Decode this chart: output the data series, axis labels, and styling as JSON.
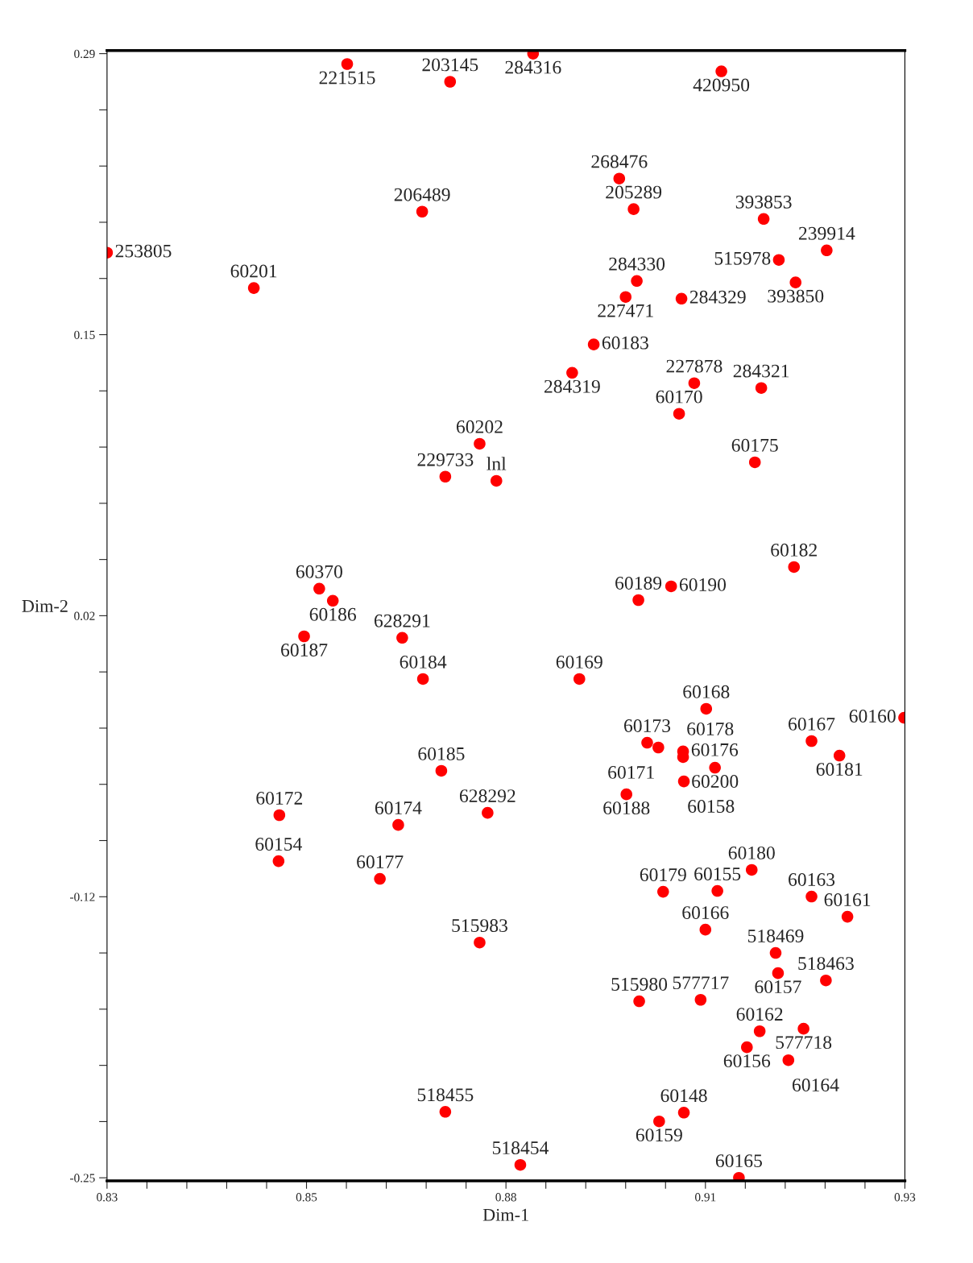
{
  "chart_data": {
    "type": "scatter",
    "xlabel": "Dim-1",
    "ylabel": "Dim-2",
    "marker": "circle",
    "grid": false,
    "legend": false,
    "xlim": [
      0.83,
      0.93
    ],
    "ylim": [
      -0.2515,
      0.2915
    ],
    "xticks": [
      0.83,
      {
        "value": 0.835,
        "label": null
      },
      {
        "value": 0.84,
        "label": null
      },
      {
        "value": 0.845,
        "label": null
      },
      {
        "value": 0.85,
        "label": null
      },
      {
        "value": 0.855,
        "label": "0.85"
      },
      {
        "value": 0.86,
        "label": null
      },
      {
        "value": 0.865,
        "label": null
      },
      {
        "value": 0.87,
        "label": null
      },
      {
        "value": 0.875,
        "label": null
      },
      0.88,
      {
        "value": 0.885,
        "label": null
      },
      {
        "value": 0.89,
        "label": null
      },
      {
        "value": 0.895,
        "label": null
      },
      {
        "value": 0.9,
        "label": null
      },
      {
        "value": 0.905,
        "label": "0.91"
      },
      {
        "value": 0.91,
        "label": null
      },
      {
        "value": 0.915,
        "label": null
      },
      {
        "value": 0.92,
        "label": null
      },
      {
        "value": 0.925,
        "label": null
      },
      0.93
    ],
    "yticks": [
      -0.25,
      {
        "value": -0.223,
        "label": null
      },
      {
        "value": -0.196,
        "label": null
      },
      {
        "value": -0.169,
        "label": null
      },
      {
        "value": -0.142,
        "label": null
      },
      {
        "value": -0.115,
        "label": "-0.12"
      },
      {
        "value": -0.088,
        "label": null
      },
      {
        "value": -0.061,
        "label": null
      },
      {
        "value": -0.034,
        "label": null
      },
      {
        "value": -0.007,
        "label": null
      },
      0.02,
      {
        "value": 0.047,
        "label": null
      },
      {
        "value": 0.074,
        "label": null
      },
      {
        "value": 0.101,
        "label": null
      },
      {
        "value": 0.128,
        "label": null
      },
      {
        "value": 0.155,
        "label": "0.15"
      },
      {
        "value": 0.182,
        "label": null
      },
      {
        "value": 0.209,
        "label": null
      },
      {
        "value": 0.236,
        "label": null
      },
      {
        "value": 0.263,
        "label": null
      },
      0.29
    ],
    "series": [
      {
        "color": "#ff0000",
        "x": [
          0.8601,
          0.873,
          0.8834,
          0.907,
          0.8942,
          0.896,
          0.8695,
          0.9123,
          0.83,
          0.9202,
          0.9142,
          0.9163,
          0.8484,
          0.8964,
          0.895,
          0.902,
          0.891,
          0.8883,
          0.9036,
          0.912,
          0.9017,
          0.8767,
          0.8724,
          0.8788,
          0.9112,
          0.9161,
          0.8566,
          0.8583,
          0.8547,
          0.8966,
          0.9007,
          0.867,
          0.8696,
          0.8892,
          0.9051,
          0.9299,
          0.8977,
          0.8991,
          0.9022,
          0.9022,
          0.9062,
          0.9023,
          0.9183,
          0.9218,
          0.8951,
          0.8719,
          0.8516,
          0.8777,
          0.8665,
          0.8515,
          0.8642,
          0.9108,
          0.8997,
          0.9065,
          0.9183,
          0.9228,
          0.905,
          0.8767,
          0.9138,
          0.9141,
          0.9201,
          0.8967,
          0.9044,
          0.9118,
          0.9173,
          0.9102,
          0.9154,
          0.8724,
          0.8992,
          0.9023,
          0.8818,
          0.9092
        ],
        "values": [
          0.285,
          0.2765,
          0.29,
          0.2815,
          0.23,
          0.2153,
          0.2141,
          0.2106,
          0.1944,
          0.1955,
          0.1909,
          0.1801,
          0.1774,
          0.1808,
          0.1731,
          0.1723,
          0.1503,
          0.1367,
          0.1317,
          0.1294,
          0.117,
          0.1026,
          0.0868,
          0.0848,
          0.0937,
          0.0434,
          0.033,
          0.0272,
          0.0101,
          0.0275,
          0.0341,
          0.0094,
          -0.0104,
          -0.0104,
          -0.0247,
          -0.029,
          -0.041,
          -0.0433,
          -0.0452,
          -0.0479,
          -0.053,
          -0.0596,
          -0.0402,
          -0.0472,
          -0.0658,
          -0.0545,
          -0.0758,
          -0.0747,
          -0.0805,
          -0.0979,
          -0.1064,
          -0.1021,
          -0.1126,
          -0.1122,
          -0.1149,
          -0.1246,
          -0.1308,
          -0.137,
          -0.142,
          -0.1517,
          -0.1552,
          -0.1652,
          -0.1645,
          -0.1796,
          -0.1784,
          -0.1873,
          -0.1935,
          -0.2183,
          -0.2229,
          -0.2187,
          -0.2438,
          -0.25
        ]
      }
    ],
    "annotations": [
      {
        "text": "221515",
        "x": 0.8601,
        "y": 0.285
      },
      {
        "text": "203145",
        "x": 0.873,
        "y": 0.2765
      },
      {
        "text": "284316",
        "x": 0.8834,
        "y": 0.29
      },
      {
        "text": "420950",
        "x": 0.907,
        "y": 0.2815
      },
      {
        "text": "268476",
        "x": 0.8942,
        "y": 0.23
      },
      {
        "text": "205289",
        "x": 0.896,
        "y": 0.2153
      },
      {
        "text": "206489",
        "x": 0.8695,
        "y": 0.2141
      },
      {
        "text": "393853",
        "x": 0.9123,
        "y": 0.2106
      },
      {
        "text": "253805",
        "x": 0.83,
        "y": 0.1944
      },
      {
        "text": "239914",
        "x": 0.9202,
        "y": 0.1955
      },
      {
        "text": "515978",
        "x": 0.9142,
        "y": 0.1909
      },
      {
        "text": "393850",
        "x": 0.9163,
        "y": 0.1801
      },
      {
        "text": "60201",
        "x": 0.8484,
        "y": 0.1774
      },
      {
        "text": "284330",
        "x": 0.8964,
        "y": 0.1808
      },
      {
        "text": "227471",
        "x": 0.895,
        "y": 0.1731
      },
      {
        "text": "284329",
        "x": 0.902,
        "y": 0.1723
      },
      {
        "text": "60183",
        "x": 0.891,
        "y": 0.1503
      },
      {
        "text": "284319",
        "x": 0.8883,
        "y": 0.1367
      },
      {
        "text": "227878",
        "x": 0.9036,
        "y": 0.1317
      },
      {
        "text": "284321",
        "x": 0.912,
        "y": 0.1294
      },
      {
        "text": "60170",
        "x": 0.9017,
        "y": 0.117
      },
      {
        "text": "60202",
        "x": 0.8767,
        "y": 0.1026
      },
      {
        "text": "229733",
        "x": 0.8724,
        "y": 0.0868
      },
      {
        "text": "lnl",
        "x": 0.8788,
        "y": 0.0848
      },
      {
        "text": "60175",
        "x": 0.9112,
        "y": 0.0937
      },
      {
        "text": "60182",
        "x": 0.9161,
        "y": 0.0434
      },
      {
        "text": "60370",
        "x": 0.8566,
        "y": 0.033
      },
      {
        "text": "60186",
        "x": 0.8583,
        "y": 0.0272
      },
      {
        "text": "60187",
        "x": 0.8547,
        "y": 0.0101
      },
      {
        "text": "60189",
        "x": 0.8966,
        "y": 0.0275
      },
      {
        "text": "60190",
        "x": 0.9007,
        "y": 0.0341
      },
      {
        "text": "628291",
        "x": 0.867,
        "y": 0.0094
      },
      {
        "text": "60184",
        "x": 0.8696,
        "y": -0.0104
      },
      {
        "text": "60169",
        "x": 0.8892,
        "y": -0.0104
      },
      {
        "text": "60168",
        "x": 0.9051,
        "y": -0.0247
      },
      {
        "text": "60160",
        "x": 0.9299,
        "y": -0.029
      },
      {
        "text": "60173",
        "x": 0.8977,
        "y": -0.041
      },
      {
        "text": "60171",
        "x": 0.8991,
        "y": -0.0433
      },
      {
        "text": "60176",
        "x": 0.9022,
        "y": -0.0452
      },
      {
        "text": "60178",
        "x": 0.9022,
        "y": -0.0479
      },
      {
        "text": "60200",
        "x": 0.9062,
        "y": -0.053
      },
      {
        "text": "60158",
        "x": 0.9023,
        "y": -0.0596
      },
      {
        "text": "60167",
        "x": 0.9183,
        "y": -0.0402
      },
      {
        "text": "60181",
        "x": 0.9218,
        "y": -0.0472
      },
      {
        "text": "60188",
        "x": 0.8951,
        "y": -0.0658
      },
      {
        "text": "60185",
        "x": 0.8719,
        "y": -0.0545
      },
      {
        "text": "60172",
        "x": 0.8516,
        "y": -0.0758
      },
      {
        "text": "628292",
        "x": 0.8777,
        "y": -0.0747
      },
      {
        "text": "60174",
        "x": 0.8665,
        "y": -0.0805
      },
      {
        "text": "60154",
        "x": 0.8515,
        "y": -0.0979
      },
      {
        "text": "60177",
        "x": 0.8642,
        "y": -0.1064
      },
      {
        "text": "60180",
        "x": 0.9108,
        "y": -0.1021
      },
      {
        "text": "60179",
        "x": 0.8997,
        "y": -0.1126
      },
      {
        "text": "60155",
        "x": 0.9065,
        "y": -0.1122
      },
      {
        "text": "60163",
        "x": 0.9183,
        "y": -0.1149
      },
      {
        "text": "60161",
        "x": 0.9228,
        "y": -0.1246
      },
      {
        "text": "60166",
        "x": 0.905,
        "y": -0.1308
      },
      {
        "text": "515983",
        "x": 0.8767,
        "y": -0.137
      },
      {
        "text": "518469",
        "x": 0.9138,
        "y": -0.142
      },
      {
        "text": "60157",
        "x": 0.9141,
        "y": -0.1517
      },
      {
        "text": "518463",
        "x": 0.9201,
        "y": -0.1552
      },
      {
        "text": "515980",
        "x": 0.8967,
        "y": -0.1652
      },
      {
        "text": "577717",
        "x": 0.9044,
        "y": -0.1645
      },
      {
        "text": "60162",
        "x": 0.9118,
        "y": -0.1796
      },
      {
        "text": "577718",
        "x": 0.9173,
        "y": -0.1784
      },
      {
        "text": "60156",
        "x": 0.9102,
        "y": -0.1873
      },
      {
        "text": "60164",
        "x": 0.9154,
        "y": -0.1935
      },
      {
        "text": "518455",
        "x": 0.8724,
        "y": -0.2183
      },
      {
        "text": "60159",
        "x": 0.8992,
        "y": -0.2229
      },
      {
        "text": "60148",
        "x": 0.9023,
        "y": -0.2187
      },
      {
        "text": "518454",
        "x": 0.8818,
        "y": -0.2438
      },
      {
        "text": "60165",
        "x": 0.9092,
        "y": -0.25
      }
    ]
  }
}
